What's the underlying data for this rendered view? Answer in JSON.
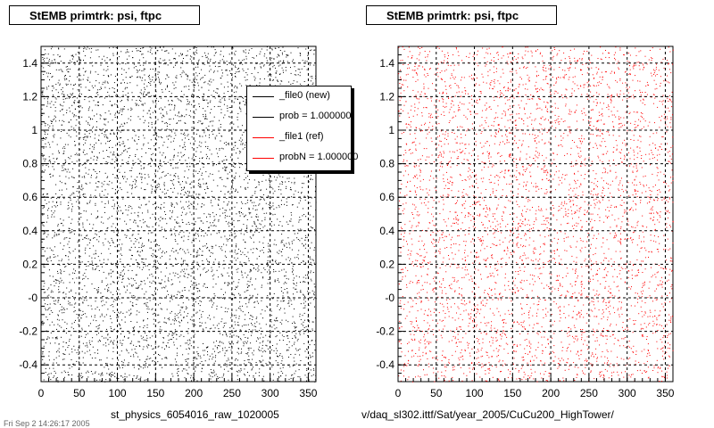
{
  "panels": [
    {
      "title": "StEMB primtrk: psi, ftpc",
      "xtitle": "st_physics_6054016_raw_1020005",
      "point_color": "#000000"
    },
    {
      "title": "StEMB primtrk: psi, ftpc",
      "xtitle": "v/daq_sl302.ittf/Sat/year_2005/CuCu200_HighTower/",
      "point_color": "#ff0000"
    }
  ],
  "legend": {
    "entries": [
      {
        "label": "_file0 (new)",
        "color": "#000000"
      },
      {
        "label": "prob = 1.000000",
        "color": "#000000"
      },
      {
        "label": "_file1 (ref)",
        "color": "#ff0000"
      },
      {
        "label": "probN = 1.000000",
        "color": "#ff0000"
      }
    ]
  },
  "footer": "Fri Sep 2 14:26:17 2005",
  "chart_data": [
    {
      "type": "scatter",
      "title": "StEMB primtrk: psi, ftpc",
      "xlabel": "st_physics_6054016_raw_1020005",
      "ylabel": "",
      "xlim": [
        0,
        360
      ],
      "ylim": [
        -0.5,
        1.5
      ],
      "x_ticks": [
        0,
        50,
        100,
        150,
        200,
        250,
        300,
        350
      ],
      "y_ticks": [
        -0.4,
        -0.2,
        0,
        0.2,
        0.4,
        0.6,
        0.8,
        1,
        1.2,
        1.4
      ],
      "y_tick_labels": [
        "-0.4",
        "-0.2",
        "-0",
        "0.2",
        "0.4",
        "0.6",
        "0.8",
        "1",
        "1.2",
        "1.4"
      ],
      "grid": true,
      "legend_position": "top-right",
      "series": [
        {
          "name": "_file0 (new)",
          "color": "#000000",
          "distribution": "uniform"
        }
      ]
    },
    {
      "type": "scatter",
      "title": "StEMB primtrk: psi, ftpc",
      "xlabel": "v/daq_sl302.ittf/Sat/year_2005/CuCu200_HighTower/",
      "ylabel": "",
      "xlim": [
        0,
        360
      ],
      "ylim": [
        -0.5,
        1.5
      ],
      "x_ticks": [
        0,
        50,
        100,
        150,
        200,
        250,
        300,
        350
      ],
      "y_ticks": [
        -0.4,
        -0.2,
        0,
        0.2,
        0.4,
        0.6,
        0.8,
        1,
        1.2,
        1.4
      ],
      "y_tick_labels": [
        "-0.4",
        "-0.2",
        "-0",
        "0.2",
        "0.4",
        "0.6",
        "0.8",
        "1",
        "1.2",
        "1.4"
      ],
      "grid": true,
      "series": [
        {
          "name": "_file1 (ref)",
          "color": "#ff0000",
          "distribution": "uniform"
        }
      ]
    }
  ]
}
